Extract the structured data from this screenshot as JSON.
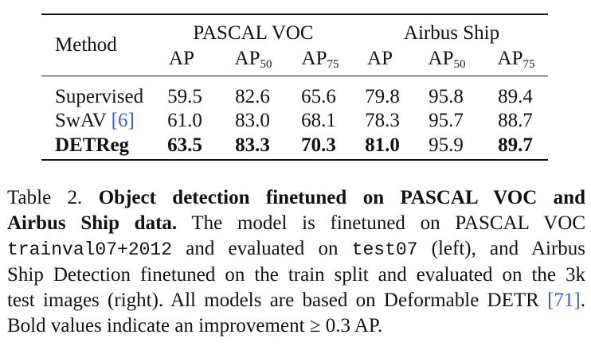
{
  "table": {
    "method_header": "Method",
    "group_voc": "PASCAL VOC",
    "group_airbus": "Airbus Ship",
    "metric_ap": "AP",
    "metric_ap50_base": "AP",
    "metric_ap50_sub": "50",
    "metric_ap75_base": "AP",
    "metric_ap75_sub": "75",
    "rows": [
      {
        "method": "Supervised",
        "cite": "",
        "values": [
          "59.5",
          "82.6",
          "65.6",
          "79.8",
          "95.8",
          "89.4"
        ]
      },
      {
        "method": "SwAV ",
        "cite": "[6]",
        "values": [
          "61.0",
          "83.0",
          "68.1",
          "78.3",
          "95.7",
          "88.7"
        ]
      },
      {
        "method": "DETReg",
        "cite": "",
        "values": [
          "63.5",
          "83.3",
          "70.3",
          "81.0",
          "95.9",
          "89.7"
        ]
      }
    ]
  },
  "caption": {
    "label": "Table 2. ",
    "title_1": "Object detection finetuned on PASCAL VOC and",
    "title_2": "Airbus Ship data.",
    "l2_rest": " The model is finetuned on PASCAL VOC",
    "code_1": "trainval07+2012",
    "l3_mid": " and evaluated on ",
    "code_2": "test07",
    "l3_end": " (left), and Airbus",
    "l4": "Ship Detection finetuned on the train split and evaluated on the 3k",
    "l5_a": "test images (right). All models are based on Deformable DETR ",
    "l5_cite": "[71]",
    "l5_end": ".",
    "l6": "Bold values indicate an improvement ≥ 0.3 AP."
  }
}
